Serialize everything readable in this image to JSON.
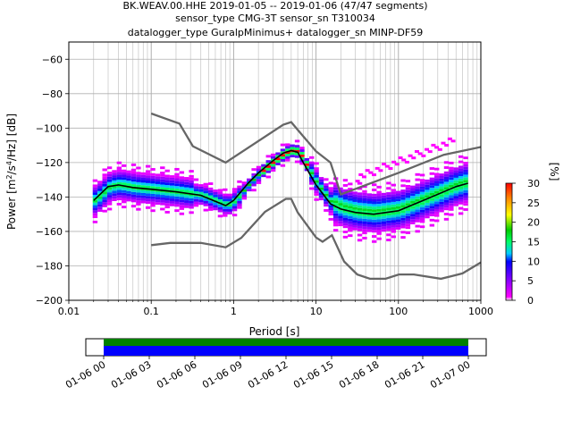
{
  "chart_data": {
    "type": "heatmap",
    "title_lines": [
      "BK.WEAV.00.HHE   2019-01-05 -- 2019-01-06  (47/47 segments)",
      "sensor_type CMG-3T sensor_sn T310034",
      "datalogger_type GuralpMinimus+ datalogger_sn MINP-DF59"
    ],
    "xlabel": "Period [s]",
    "ylabel_parts": [
      "Power [m",
      "2",
      "/s",
      "4",
      "/Hz] [dB]"
    ],
    "x_scale": "log",
    "xlim": [
      0.01,
      1000
    ],
    "ylim": [
      -200,
      -50
    ],
    "x_ticks": [
      {
        "value": 0.01,
        "label": "0.01"
      },
      {
        "value": 0.1,
        "label": "0.1"
      },
      {
        "value": 1,
        "label": "1"
      },
      {
        "value": 10,
        "label": "10"
      },
      {
        "value": 100,
        "label": "100"
      },
      {
        "value": 1000,
        "label": "1000"
      }
    ],
    "y_ticks": [
      {
        "value": -60,
        "label": "−60"
      },
      {
        "value": -80,
        "label": "−80"
      },
      {
        "value": -100,
        "label": "−100"
      },
      {
        "value": -120,
        "label": "−120"
      },
      {
        "value": -140,
        "label": "−140"
      },
      {
        "value": -160,
        "label": "−160"
      },
      {
        "value": -180,
        "label": "−180"
      },
      {
        "value": -200,
        "label": "−200"
      }
    ],
    "grid": true,
    "noise_model_high": [
      [
        0.1,
        -91.5
      ],
      [
        0.22,
        -97.4
      ],
      [
        0.32,
        -110.5
      ],
      [
        0.8,
        -120
      ],
      [
        4.0,
        -98
      ],
      [
        5.0,
        -96.5
      ],
      [
        6.0,
        -101
      ],
      [
        10.0,
        -113.5
      ],
      [
        15.0,
        -120
      ],
      [
        20.0,
        -138.5
      ],
      [
        100.0,
        -126
      ],
      [
        354.8,
        -115.5
      ],
      [
        1000.0,
        -111
      ]
    ],
    "noise_model_low": [
      [
        0.1,
        -168
      ],
      [
        0.17,
        -166.7
      ],
      [
        0.4,
        -166.7
      ],
      [
        0.8,
        -169.2
      ],
      [
        1.24,
        -163.7
      ],
      [
        2.4,
        -148.6
      ],
      [
        4.3,
        -141.1
      ],
      [
        5.0,
        -141.1
      ],
      [
        6.0,
        -149
      ],
      [
        10.0,
        -163.5
      ],
      [
        12.0,
        -166
      ],
      [
        15.6,
        -162.2
      ],
      [
        21.9,
        -177.5
      ],
      [
        31.6,
        -185
      ],
      [
        45.0,
        -187.5
      ],
      [
        70.0,
        -187.5
      ],
      [
        101.0,
        -185
      ],
      [
        154.0,
        -185
      ],
      [
        328.0,
        -187.5
      ],
      [
        600.0,
        -184.4
      ],
      [
        1000.0,
        -178
      ]
    ],
    "mean_curve": [
      [
        0.02,
        -142
      ],
      [
        0.03,
        -134
      ],
      [
        0.04,
        -133
      ],
      [
        0.06,
        -134.5
      ],
      [
        0.1,
        -135.5
      ],
      [
        0.2,
        -137
      ],
      [
        0.4,
        -139
      ],
      [
        0.6,
        -142.5
      ],
      [
        0.8,
        -145
      ],
      [
        1.0,
        -142
      ],
      [
        1.5,
        -132
      ],
      [
        2.0,
        -126
      ],
      [
        3.0,
        -119
      ],
      [
        4.0,
        -114.5
      ],
      [
        5.0,
        -113
      ],
      [
        6.0,
        -114
      ],
      [
        7.0,
        -120
      ],
      [
        10.0,
        -133
      ],
      [
        15.0,
        -144
      ],
      [
        20.0,
        -147
      ],
      [
        30.0,
        -149
      ],
      [
        50.0,
        -150
      ],
      [
        100.0,
        -148
      ],
      [
        200.0,
        -142
      ],
      [
        500.0,
        -134
      ],
      [
        700.0,
        -132
      ]
    ],
    "colorbar": {
      "label": "[%]",
      "min": 0,
      "max": 30,
      "ticks": [
        "0",
        "5",
        "10",
        "15",
        "20",
        "25",
        "30"
      ]
    },
    "coverage": {
      "ticks": [
        "01-06 00",
        "01-06 03",
        "01-06 06",
        "01-06 09",
        "01-06 12",
        "01-06 15",
        "01-06 18",
        "01-06 21",
        "01-07 00"
      ],
      "segments": "47/47"
    }
  }
}
